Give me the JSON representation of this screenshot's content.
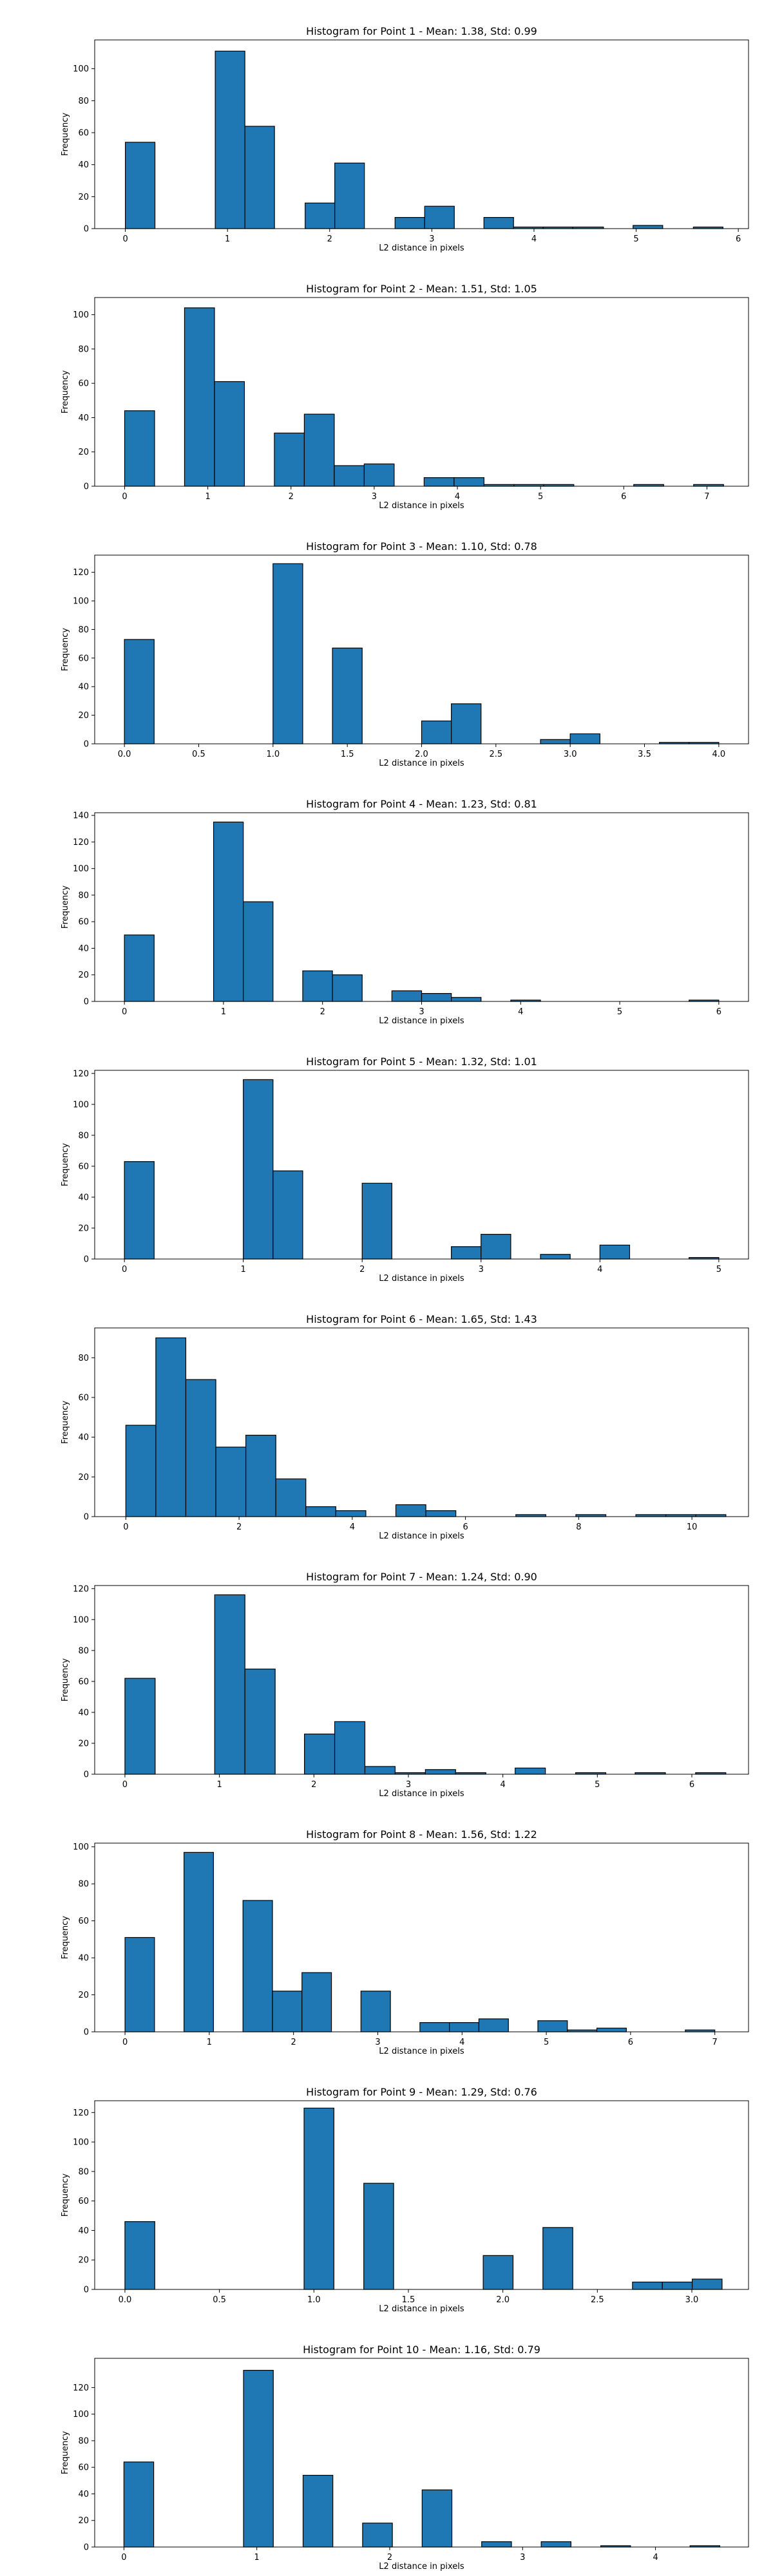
{
  "chart_data": [
    {
      "type": "bar",
      "title": "Histogram for Point 1 - Mean: 1.38, Std: 0.99",
      "xlabel": "L2 distance in pixels",
      "ylabel": "Frequency",
      "xlim": [
        -0.3,
        6.1
      ],
      "ylim": [
        0,
        118
      ],
      "xticks": [
        0,
        1,
        2,
        3,
        4,
        5,
        6
      ],
      "xtick_labels": [
        "0",
        "1",
        "2",
        "3",
        "4",
        "5",
        "6"
      ],
      "yticks": [
        0,
        20,
        40,
        60,
        80,
        100
      ],
      "bins": [
        [
          0,
          0.29,
          54
        ],
        [
          0.88,
          1.17,
          111
        ],
        [
          1.17,
          1.46,
          64
        ],
        [
          1.76,
          2.05,
          16
        ],
        [
          2.05,
          2.34,
          41
        ],
        [
          2.64,
          2.93,
          7
        ],
        [
          2.93,
          3.22,
          14
        ],
        [
          3.51,
          3.8,
          7
        ],
        [
          3.8,
          4.09,
          1
        ],
        [
          4.09,
          4.38,
          1
        ],
        [
          4.38,
          4.68,
          1
        ],
        [
          4.97,
          5.26,
          2
        ],
        [
          5.56,
          5.85,
          1
        ]
      ]
    },
    {
      "type": "bar",
      "title": "Histogram for Point 2 - Mean: 1.51, Std: 1.05",
      "xlabel": "L2 distance in pixels",
      "ylabel": "Frequency",
      "xlim": [
        -0.36,
        7.5
      ],
      "ylim": [
        0,
        110
      ],
      "xticks": [
        0,
        1,
        2,
        3,
        4,
        5,
        6,
        7
      ],
      "xtick_labels": [
        "0",
        "1",
        "2",
        "3",
        "4",
        "5",
        "6",
        "7"
      ],
      "yticks": [
        0,
        20,
        40,
        60,
        80,
        100
      ],
      "bins": [
        [
          0,
          0.36,
          44
        ],
        [
          0.72,
          1.08,
          104
        ],
        [
          1.08,
          1.44,
          61
        ],
        [
          1.8,
          2.16,
          31
        ],
        [
          2.16,
          2.52,
          42
        ],
        [
          2.52,
          2.88,
          12
        ],
        [
          2.88,
          3.24,
          13
        ],
        [
          3.6,
          3.96,
          5
        ],
        [
          3.96,
          4.32,
          5
        ],
        [
          4.32,
          4.68,
          1
        ],
        [
          4.68,
          5.04,
          1
        ],
        [
          5.04,
          5.4,
          1
        ],
        [
          6.12,
          6.48,
          1
        ],
        [
          6.84,
          7.2,
          1
        ]
      ]
    },
    {
      "type": "bar",
      "title": "Histogram for Point 3 - Mean: 1.10, Std: 0.78",
      "xlabel": "L2 distance in pixels",
      "ylabel": "Frequency",
      "xlim": [
        -0.2,
        4.2
      ],
      "ylim": [
        0,
        132
      ],
      "xticks": [
        0,
        0.5,
        1,
        1.5,
        2,
        2.5,
        3,
        3.5,
        4
      ],
      "xtick_labels": [
        "0.0",
        "0.5",
        "1.0",
        "1.5",
        "2.0",
        "2.5",
        "3.0",
        "3.5",
        "4.0"
      ],
      "yticks": [
        0,
        20,
        40,
        60,
        80,
        100,
        120
      ],
      "bins": [
        [
          0,
          0.2,
          73
        ],
        [
          1.0,
          1.2,
          126
        ],
        [
          1.4,
          1.6,
          67
        ],
        [
          2.0,
          2.2,
          16
        ],
        [
          2.2,
          2.4,
          28
        ],
        [
          2.8,
          3.0,
          3
        ],
        [
          3.0,
          3.2,
          7
        ],
        [
          3.6,
          3.8,
          1
        ],
        [
          3.8,
          4.0,
          1
        ]
      ]
    },
    {
      "type": "bar",
      "title": "Histogram for Point 4 - Mean: 1.23, Std: 0.81",
      "xlabel": "L2 distance in pixels",
      "ylabel": "Frequency",
      "xlim": [
        -0.3,
        6.3
      ],
      "ylim": [
        0,
        142
      ],
      "xticks": [
        0,
        1,
        2,
        3,
        4,
        5,
        6
      ],
      "xtick_labels": [
        "0",
        "1",
        "2",
        "3",
        "4",
        "5",
        "6"
      ],
      "yticks": [
        0,
        20,
        40,
        60,
        80,
        100,
        120,
        140
      ],
      "bins": [
        [
          0,
          0.3,
          50
        ],
        [
          0.9,
          1.2,
          135
        ],
        [
          1.2,
          1.5,
          75
        ],
        [
          1.8,
          2.1,
          23
        ],
        [
          2.1,
          2.4,
          20
        ],
        [
          2.7,
          3.0,
          8
        ],
        [
          3.0,
          3.3,
          6
        ],
        [
          3.3,
          3.6,
          3
        ],
        [
          3.9,
          4.2,
          1
        ],
        [
          5.7,
          6.0,
          1
        ]
      ]
    },
    {
      "type": "bar",
      "title": "Histogram for Point 5 - Mean: 1.32, Std: 1.01",
      "xlabel": "L2 distance in pixels",
      "ylabel": "Frequency",
      "xlim": [
        -0.25,
        5.25
      ],
      "ylim": [
        0,
        122
      ],
      "xticks": [
        0,
        1,
        2,
        3,
        4,
        5
      ],
      "xtick_labels": [
        "0",
        "1",
        "2",
        "3",
        "4",
        "5"
      ],
      "yticks": [
        0,
        20,
        40,
        60,
        80,
        100,
        120
      ],
      "bins": [
        [
          0,
          0.25,
          63
        ],
        [
          1.0,
          1.25,
          116
        ],
        [
          1.25,
          1.5,
          57
        ],
        [
          2.0,
          2.25,
          49
        ],
        [
          2.75,
          3.0,
          8
        ],
        [
          3.0,
          3.25,
          16
        ],
        [
          3.5,
          3.75,
          3
        ],
        [
          4.0,
          4.25,
          9
        ],
        [
          4.75,
          5.0,
          1
        ]
      ]
    },
    {
      "type": "bar",
      "title": "Histogram for Point 6 - Mean: 1.65, Std: 1.43",
      "xlabel": "L2 distance in pixels",
      "ylabel": "Frequency",
      "xlim": [
        -0.55,
        11.0
      ],
      "ylim": [
        0,
        95
      ],
      "xticks": [
        0,
        2,
        4,
        6,
        8,
        10
      ],
      "xtick_labels": [
        "0",
        "2",
        "4",
        "6",
        "8",
        "10"
      ],
      "yticks": [
        0,
        20,
        40,
        60,
        80
      ],
      "bins": [
        [
          0,
          0.53,
          46
        ],
        [
          0.53,
          1.06,
          90
        ],
        [
          1.06,
          1.59,
          69
        ],
        [
          1.59,
          2.12,
          35
        ],
        [
          2.12,
          2.65,
          41
        ],
        [
          2.65,
          3.18,
          19
        ],
        [
          3.18,
          3.71,
          5
        ],
        [
          3.71,
          4.24,
          3
        ],
        [
          4.77,
          5.3,
          6
        ],
        [
          5.3,
          5.83,
          3
        ],
        [
          6.89,
          7.42,
          1
        ],
        [
          7.95,
          8.48,
          1
        ],
        [
          9.01,
          9.54,
          1
        ],
        [
          9.54,
          10.07,
          1
        ],
        [
          10.07,
          10.6,
          1
        ]
      ]
    },
    {
      "type": "bar",
      "title": "Histogram for Point 7 - Mean: 1.24, Std: 0.90",
      "xlabel": "L2 distance in pixels",
      "ylabel": "Frequency",
      "xlim": [
        -0.32,
        6.6
      ],
      "ylim": [
        0,
        122
      ],
      "xticks": [
        0,
        1,
        2,
        3,
        4,
        5,
        6
      ],
      "xtick_labels": [
        "0",
        "1",
        "2",
        "3",
        "4",
        "5",
        "6"
      ],
      "yticks": [
        0,
        20,
        40,
        60,
        80,
        100,
        120
      ],
      "bins": [
        [
          0,
          0.32,
          62
        ],
        [
          0.95,
          1.27,
          116
        ],
        [
          1.27,
          1.59,
          68
        ],
        [
          1.9,
          2.22,
          26
        ],
        [
          2.22,
          2.54,
          34
        ],
        [
          2.54,
          2.86,
          5
        ],
        [
          2.86,
          3.18,
          1
        ],
        [
          3.18,
          3.5,
          3
        ],
        [
          3.5,
          3.82,
          1
        ],
        [
          4.13,
          4.45,
          4
        ],
        [
          4.77,
          5.09,
          1
        ],
        [
          5.4,
          5.72,
          1
        ],
        [
          6.04,
          6.36,
          1
        ]
      ]
    },
    {
      "type": "bar",
      "title": "Histogram for Point 8 - Mean: 1.56, Std: 1.22",
      "xlabel": "L2 distance in pixels",
      "ylabel": "Frequency",
      "xlim": [
        -0.36,
        7.4
      ],
      "ylim": [
        0,
        102
      ],
      "xticks": [
        0,
        1,
        2,
        3,
        4,
        5,
        6,
        7
      ],
      "xtick_labels": [
        "0",
        "1",
        "2",
        "3",
        "4",
        "5",
        "6",
        "7"
      ],
      "yticks": [
        0,
        20,
        40,
        60,
        80,
        100
      ],
      "bins": [
        [
          0,
          0.35,
          51
        ],
        [
          0.7,
          1.05,
          97
        ],
        [
          1.4,
          1.75,
          71
        ],
        [
          1.75,
          2.1,
          22
        ],
        [
          2.1,
          2.45,
          32
        ],
        [
          2.8,
          3.15,
          22
        ],
        [
          3.5,
          3.85,
          5
        ],
        [
          3.85,
          4.2,
          5
        ],
        [
          4.2,
          4.55,
          7
        ],
        [
          4.9,
          5.25,
          6
        ],
        [
          5.25,
          5.6,
          1
        ],
        [
          5.6,
          5.95,
          2
        ],
        [
          6.65,
          7.0,
          1
        ]
      ]
    },
    {
      "type": "bar",
      "title": "Histogram for Point 9 - Mean: 1.29, Std: 0.76",
      "xlabel": "L2 distance in pixels",
      "ylabel": "Frequency",
      "xlim": [
        -0.16,
        3.3
      ],
      "ylim": [
        0,
        128
      ],
      "xticks": [
        0,
        0.5,
        1,
        1.5,
        2,
        2.5,
        3
      ],
      "xtick_labels": [
        "0.0",
        "0.5",
        "1.0",
        "1.5",
        "2.0",
        "2.5",
        "3.0"
      ],
      "yticks": [
        0,
        20,
        40,
        60,
        80,
        100,
        120
      ],
      "bins": [
        [
          0,
          0.158,
          46
        ],
        [
          0.948,
          1.106,
          123
        ],
        [
          1.264,
          1.422,
          72
        ],
        [
          1.896,
          2.054,
          23
        ],
        [
          2.212,
          2.37,
          42
        ],
        [
          2.686,
          2.844,
          5
        ],
        [
          2.844,
          3.002,
          5
        ],
        [
          3.002,
          3.16,
          7
        ]
      ]
    },
    {
      "type": "bar",
      "title": "Histogram for Point 10 - Mean: 1.16, Std: 0.79",
      "xlabel": "L2 distance in pixels",
      "ylabel": "Frequency",
      "xlim": [
        -0.22,
        4.7
      ],
      "ylim": [
        0,
        142
      ],
      "xticks": [
        0,
        1,
        2,
        3,
        4
      ],
      "xtick_labels": [
        "0",
        "1",
        "2",
        "3",
        "4"
      ],
      "yticks": [
        0,
        20,
        40,
        60,
        80,
        100,
        120
      ],
      "bins": [
        [
          0,
          0.224,
          64
        ],
        [
          0.9,
          1.124,
          133
        ],
        [
          1.348,
          1.572,
          54
        ],
        [
          1.796,
          2.02,
          18
        ],
        [
          2.244,
          2.468,
          43
        ],
        [
          2.692,
          2.916,
          4
        ],
        [
          3.14,
          3.364,
          4
        ],
        [
          3.588,
          3.812,
          1
        ],
        [
          4.26,
          4.484,
          1
        ]
      ]
    }
  ]
}
